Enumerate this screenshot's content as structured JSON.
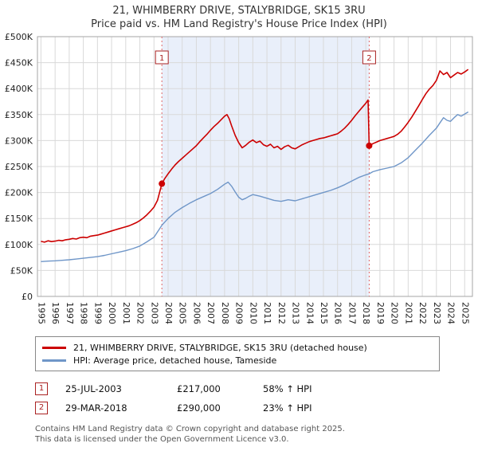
{
  "title": "21, WHIMBERRY DRIVE, STALYBRIDGE, SK15 3RU",
  "subtitle": "Price paid vs. HM Land Registry's House Price Index (HPI)",
  "legend": {
    "property": "21, WHIMBERRY DRIVE, STALYBRIDGE, SK15 3RU (detached house)",
    "hpi": "HPI: Average price, detached house, Tameside"
  },
  "annotations": [
    {
      "id": "1",
      "date": "25-JUL-2003",
      "price": "£217,000",
      "hpi": "58% ↑ HPI"
    },
    {
      "id": "2",
      "date": "29-MAR-2018",
      "price": "£290,000",
      "hpi": "23% ↑ HPI"
    }
  ],
  "footer": {
    "line1": "Contains HM Land Registry data © Crown copyright and database right 2025.",
    "line2": "This data is licensed under the Open Government Licence v3.0."
  },
  "chart_data": {
    "type": "line",
    "title": "21, WHIMBERRY DRIVE, STALYBRIDGE, SK15 3RU",
    "subtitle": "Price paid vs. HM Land Registry's House Price Index (HPI)",
    "ylabel": "",
    "xlabel": "",
    "ylim": [
      0,
      500000
    ],
    "ytick_step": 50000,
    "ytick_labels": [
      "£0",
      "£50K",
      "£100K",
      "£150K",
      "£200K",
      "£250K",
      "£300K",
      "£350K",
      "£400K",
      "£450K",
      "£500K"
    ],
    "xlim": [
      1994.75,
      2025.55
    ],
    "xticks": [
      1995,
      1996,
      1997,
      1998,
      1999,
      2000,
      2001,
      2002,
      2003,
      2004,
      2005,
      2006,
      2007,
      2008,
      2009,
      2010,
      2011,
      2012,
      2013,
      2014,
      2015,
      2016,
      2017,
      2018,
      2019,
      2020,
      2021,
      2022,
      2023,
      2024,
      2025
    ],
    "grid": true,
    "legend_position": "bottom",
    "shaded_region": [
      2003.56,
      2018.24
    ],
    "colors": {
      "property_line": "#cc0000",
      "hpi_line": "#6f96c8",
      "shade": "#e9effa",
      "grid": "#d9d9d9",
      "border": "#a6a6a6",
      "dashed": "#e06666",
      "marker": "#aa2222",
      "marker_dot": "#cc0000"
    },
    "markers": [
      {
        "id": "1",
        "x": 2003.56,
        "y": 217000
      },
      {
        "id": "2",
        "x": 2018.24,
        "y": 290000
      }
    ],
    "series": [
      {
        "name": "21, WHIMBERRY DRIVE, STALYBRIDGE, SK15 3RU (detached house)",
        "color": "#cc0000",
        "width": 1.6,
        "points": [
          [
            1995.0,
            106000
          ],
          [
            1995.25,
            104500
          ],
          [
            1995.5,
            107000
          ],
          [
            1995.75,
            105500
          ],
          [
            1996.0,
            106500
          ],
          [
            1996.25,
            108000
          ],
          [
            1996.5,
            107000
          ],
          [
            1996.75,
            109000
          ],
          [
            1997.0,
            110000
          ],
          [
            1997.25,
            111500
          ],
          [
            1997.5,
            110500
          ],
          [
            1997.75,
            113000
          ],
          [
            1998.0,
            114000
          ],
          [
            1998.25,
            113000
          ],
          [
            1998.5,
            116000
          ],
          [
            1998.75,
            117000
          ],
          [
            1999.0,
            118000
          ],
          [
            1999.25,
            120000
          ],
          [
            1999.5,
            122000
          ],
          [
            1999.75,
            124000
          ],
          [
            2000.0,
            126000
          ],
          [
            2000.25,
            128000
          ],
          [
            2000.5,
            130000
          ],
          [
            2000.75,
            132000
          ],
          [
            2001.0,
            134000
          ],
          [
            2001.25,
            136000
          ],
          [
            2001.5,
            139000
          ],
          [
            2001.75,
            142000
          ],
          [
            2002.0,
            146000
          ],
          [
            2002.25,
            151000
          ],
          [
            2002.5,
            157000
          ],
          [
            2002.75,
            164000
          ],
          [
            2003.0,
            172000
          ],
          [
            2003.25,
            185000
          ],
          [
            2003.56,
            217000
          ],
          [
            2003.75,
            226000
          ],
          [
            2004.0,
            236000
          ],
          [
            2004.25,
            245000
          ],
          [
            2004.5,
            253000
          ],
          [
            2004.75,
            260000
          ],
          [
            2005.0,
            266000
          ],
          [
            2005.25,
            272000
          ],
          [
            2005.5,
            278000
          ],
          [
            2005.75,
            284000
          ],
          [
            2006.0,
            290000
          ],
          [
            2006.25,
            298000
          ],
          [
            2006.5,
            305000
          ],
          [
            2006.75,
            312000
          ],
          [
            2007.0,
            320000
          ],
          [
            2007.25,
            327000
          ],
          [
            2007.5,
            333000
          ],
          [
            2007.75,
            340000
          ],
          [
            2008.0,
            347000
          ],
          [
            2008.17,
            350000
          ],
          [
            2008.33,
            342000
          ],
          [
            2008.5,
            328000
          ],
          [
            2008.75,
            310000
          ],
          [
            2009.0,
            296000
          ],
          [
            2009.25,
            286000
          ],
          [
            2009.5,
            291000
          ],
          [
            2009.75,
            297000
          ],
          [
            2010.0,
            301000
          ],
          [
            2010.25,
            296000
          ],
          [
            2010.5,
            299000
          ],
          [
            2010.75,
            292000
          ],
          [
            2011.0,
            289000
          ],
          [
            2011.25,
            293000
          ],
          [
            2011.5,
            286000
          ],
          [
            2011.75,
            289000
          ],
          [
            2012.0,
            283000
          ],
          [
            2012.25,
            288000
          ],
          [
            2012.5,
            291000
          ],
          [
            2012.75,
            286000
          ],
          [
            2013.0,
            284000
          ],
          [
            2013.25,
            288000
          ],
          [
            2013.5,
            292000
          ],
          [
            2013.75,
            295000
          ],
          [
            2014.0,
            298000
          ],
          [
            2014.25,
            300000
          ],
          [
            2014.5,
            302000
          ],
          [
            2014.75,
            304000
          ],
          [
            2015.0,
            305000
          ],
          [
            2015.25,
            307000
          ],
          [
            2015.5,
            309000
          ],
          [
            2015.75,
            311000
          ],
          [
            2016.0,
            313000
          ],
          [
            2016.25,
            318000
          ],
          [
            2016.5,
            324000
          ],
          [
            2016.75,
            331000
          ],
          [
            2017.0,
            339000
          ],
          [
            2017.25,
            348000
          ],
          [
            2017.5,
            356000
          ],
          [
            2017.75,
            364000
          ],
          [
            2018.0,
            372000
          ],
          [
            2018.16,
            378000
          ],
          [
            2018.24,
            290000
          ],
          [
            2018.5,
            294000
          ],
          [
            2018.75,
            297000
          ],
          [
            2019.0,
            300000
          ],
          [
            2019.25,
            302000
          ],
          [
            2019.5,
            304000
          ],
          [
            2019.75,
            306000
          ],
          [
            2020.0,
            308000
          ],
          [
            2020.25,
            312000
          ],
          [
            2020.5,
            318000
          ],
          [
            2020.75,
            326000
          ],
          [
            2021.0,
            335000
          ],
          [
            2021.25,
            345000
          ],
          [
            2021.5,
            356000
          ],
          [
            2021.75,
            367000
          ],
          [
            2022.0,
            379000
          ],
          [
            2022.25,
            390000
          ],
          [
            2022.5,
            399000
          ],
          [
            2022.75,
            406000
          ],
          [
            2023.0,
            416000
          ],
          [
            2023.25,
            434000
          ],
          [
            2023.5,
            427000
          ],
          [
            2023.75,
            431000
          ],
          [
            2024.0,
            421000
          ],
          [
            2024.25,
            426000
          ],
          [
            2024.5,
            431000
          ],
          [
            2024.75,
            428000
          ],
          [
            2025.0,
            432000
          ],
          [
            2025.25,
            437000
          ]
        ]
      },
      {
        "name": "HPI: Average price, detached house, Tameside",
        "color": "#6f96c8",
        "width": 1.4,
        "points": [
          [
            1995.0,
            67000
          ],
          [
            1995.5,
            68000
          ],
          [
            1996.0,
            68500
          ],
          [
            1996.5,
            69500
          ],
          [
            1997.0,
            70500
          ],
          [
            1997.5,
            72000
          ],
          [
            1998.0,
            73500
          ],
          [
            1998.5,
            75000
          ],
          [
            1999.0,
            76500
          ],
          [
            1999.5,
            79000
          ],
          [
            2000.0,
            82000
          ],
          [
            2000.5,
            85000
          ],
          [
            2001.0,
            88000
          ],
          [
            2001.5,
            92000
          ],
          [
            2002.0,
            97000
          ],
          [
            2002.5,
            105000
          ],
          [
            2003.0,
            114000
          ],
          [
            2003.56,
            137000
          ],
          [
            2004.0,
            150000
          ],
          [
            2004.5,
            162000
          ],
          [
            2005.0,
            171000
          ],
          [
            2005.5,
            179000
          ],
          [
            2006.0,
            186000
          ],
          [
            2006.5,
            192000
          ],
          [
            2007.0,
            198000
          ],
          [
            2007.5,
            206000
          ],
          [
            2008.0,
            216000
          ],
          [
            2008.25,
            220000
          ],
          [
            2008.5,
            212000
          ],
          [
            2008.75,
            201000
          ],
          [
            2009.0,
            191000
          ],
          [
            2009.25,
            186000
          ],
          [
            2009.5,
            189000
          ],
          [
            2009.75,
            193000
          ],
          [
            2010.0,
            196000
          ],
          [
            2010.5,
            193000
          ],
          [
            2011.0,
            189000
          ],
          [
            2011.5,
            185000
          ],
          [
            2012.0,
            183000
          ],
          [
            2012.5,
            186000
          ],
          [
            2013.0,
            184000
          ],
          [
            2013.5,
            188000
          ],
          [
            2014.0,
            192000
          ],
          [
            2014.5,
            196000
          ],
          [
            2015.0,
            200000
          ],
          [
            2015.5,
            204000
          ],
          [
            2016.0,
            209000
          ],
          [
            2016.5,
            215000
          ],
          [
            2017.0,
            222000
          ],
          [
            2017.5,
            229000
          ],
          [
            2018.0,
            234000
          ],
          [
            2018.24,
            236000
          ],
          [
            2018.5,
            240000
          ],
          [
            2019.0,
            244000
          ],
          [
            2019.5,
            247000
          ],
          [
            2020.0,
            250000
          ],
          [
            2020.5,
            257000
          ],
          [
            2021.0,
            267000
          ],
          [
            2021.5,
            281000
          ],
          [
            2022.0,
            295000
          ],
          [
            2022.5,
            310000
          ],
          [
            2023.0,
            324000
          ],
          [
            2023.25,
            334000
          ],
          [
            2023.5,
            344000
          ],
          [
            2023.75,
            339000
          ],
          [
            2024.0,
            337000
          ],
          [
            2024.25,
            344000
          ],
          [
            2024.5,
            350000
          ],
          [
            2024.75,
            347000
          ],
          [
            2025.0,
            351000
          ],
          [
            2025.25,
            355000
          ]
        ]
      }
    ]
  }
}
